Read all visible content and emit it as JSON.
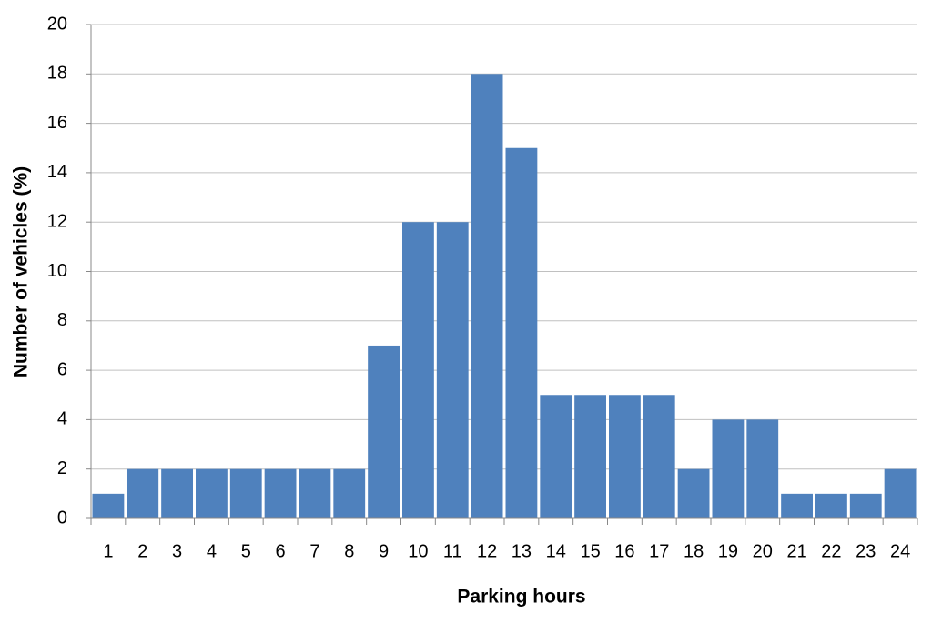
{
  "chart_data": {
    "type": "bar",
    "x_label": "Parking hours",
    "y_label": "Number of vehicles (%)",
    "categories": [
      "1",
      "2",
      "3",
      "4",
      "5",
      "6",
      "7",
      "8",
      "9",
      "10",
      "11",
      "12",
      "13",
      "14",
      "15",
      "16",
      "17",
      "18",
      "19",
      "20",
      "21",
      "22",
      "23",
      "24"
    ],
    "values": [
      1,
      2,
      2,
      2,
      2,
      2,
      2,
      2,
      7,
      12,
      12,
      18,
      15,
      5,
      5,
      5,
      5,
      2,
      4,
      4,
      1,
      1,
      1,
      2
    ],
    "color": "#4f81bd",
    "ylim": [
      0,
      20
    ],
    "yticks": [
      0,
      2,
      4,
      6,
      8,
      10,
      12,
      14,
      16,
      18,
      20
    ],
    "grid": true
  }
}
